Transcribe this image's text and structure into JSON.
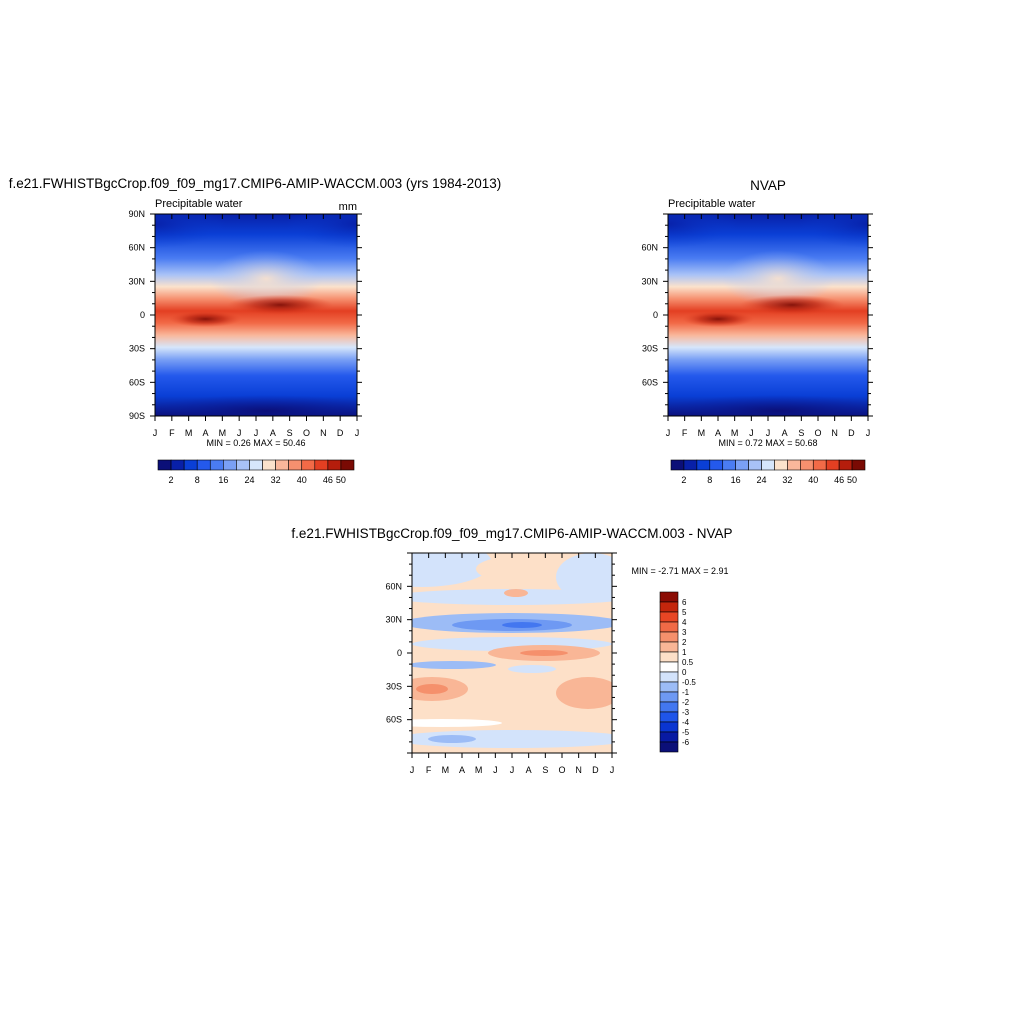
{
  "panels": [
    {
      "title": "f.e21.FWHISTBgcCrop.f09_f09_mg17.CMIP6-AMIP-WACCM.003 (yrs 1984-2013)",
      "subtitle_left": "Precipitable water",
      "subtitle_right": "mm",
      "minmax": "MIN =   0.26 MAX =  50.46",
      "yticks": [
        "90N",
        "60N",
        "30N",
        "0",
        "30S",
        "60S",
        "90S"
      ]
    },
    {
      "title": "NVAP",
      "subtitle_left": "Precipitable water",
      "subtitle_right": "",
      "minmax": "MIN =   0.72 MAX =  50.68",
      "yticks": [
        "",
        "60N",
        "30N",
        "0",
        "30S",
        "60S",
        ""
      ]
    },
    {
      "title": "f.e21.FWHISTBgcCrop.f09_f09_mg17.CMIP6-AMIP-WACCM.003 - NVAP",
      "subtitle_left": "",
      "subtitle_right": "",
      "minmax": "MIN =  -2.71 MAX =   2.91",
      "yticks": [
        "",
        "60N",
        "30N",
        "0",
        "30S",
        "60S",
        ""
      ]
    }
  ],
  "xticks": [
    "J",
    "F",
    "M",
    "A",
    "M",
    "J",
    "J",
    "A",
    "S",
    "O",
    "N",
    "D",
    "J"
  ],
  "colorbar_main": {
    "colors": [
      "#0b0f78",
      "#0820a8",
      "#0a3fd6",
      "#2459ec",
      "#4a7cf2",
      "#7aa0f5",
      "#a8c2f7",
      "#d6e6fb",
      "#fbe2cc",
      "#f9b79b",
      "#f6906f",
      "#f26a47",
      "#e33f22",
      "#b51d0c",
      "#7a0a04"
    ],
    "labels": [
      "2",
      "8",
      "16",
      "24",
      "32",
      "40",
      "46",
      "50"
    ]
  },
  "colorbar_diff": {
    "colors": [
      "#0b0f78",
      "#081aa3",
      "#0a35d1",
      "#1f55ea",
      "#4377f0",
      "#6e99f3",
      "#9cbcf6",
      "#d3e3fb",
      "#ffffff",
      "#fde0c8",
      "#f9b696",
      "#f5906c",
      "#f06a46",
      "#e84624",
      "#c4260c",
      "#8b0c04"
    ],
    "labels": [
      "6",
      "5",
      "4",
      "3",
      "2",
      "1",
      "0.5",
      "0",
      "-0.5",
      "-1",
      "-2",
      "-3",
      "-4",
      "-5",
      "-6"
    ]
  },
  "chart_data": [
    {
      "type": "heatmap",
      "title": "f.e21.FWHISTBgcCrop.f09_f09_mg17.CMIP6-AMIP-WACCM.003 (yrs 1984-2013)",
      "variable": "Precipitable water",
      "units": "mm",
      "x": [
        "J",
        "F",
        "M",
        "A",
        "M",
        "J",
        "J",
        "A",
        "S",
        "O",
        "N",
        "D",
        "J"
      ],
      "y": [
        "90N",
        "60N",
        "30N",
        "0",
        "30S",
        "60S",
        "90S"
      ],
      "ylim": [
        -90,
        90
      ],
      "min": 0.26,
      "max": 50.46,
      "levels": [
        2,
        8,
        16,
        24,
        32,
        40,
        46,
        50
      ]
    },
    {
      "type": "heatmap",
      "title": "NVAP",
      "variable": "Precipitable water",
      "x": [
        "J",
        "F",
        "M",
        "A",
        "M",
        "J",
        "J",
        "A",
        "S",
        "O",
        "N",
        "D",
        "J"
      ],
      "y": [
        "60N",
        "30N",
        "0",
        "30S",
        "60S"
      ],
      "ylim": [
        -90,
        90
      ],
      "min": 0.72,
      "max": 50.68,
      "levels": [
        2,
        8,
        16,
        24,
        32,
        40,
        46,
        50
      ]
    },
    {
      "type": "heatmap",
      "title": "f.e21.FWHISTBgcCrop.f09_f09_mg17.CMIP6-AMIP-WACCM.003 - NVAP",
      "x": [
        "J",
        "F",
        "M",
        "A",
        "M",
        "J",
        "J",
        "A",
        "S",
        "O",
        "N",
        "D",
        "J"
      ],
      "y": [
        "60N",
        "30N",
        "0",
        "30S",
        "60S"
      ],
      "ylim": [
        -90,
        90
      ],
      "min": -2.71,
      "max": 2.91,
      "levels": [
        6,
        5,
        4,
        3,
        2,
        1,
        0.5,
        0,
        -0.5,
        -1,
        -2,
        -3,
        -4,
        -5,
        -6
      ]
    }
  ]
}
